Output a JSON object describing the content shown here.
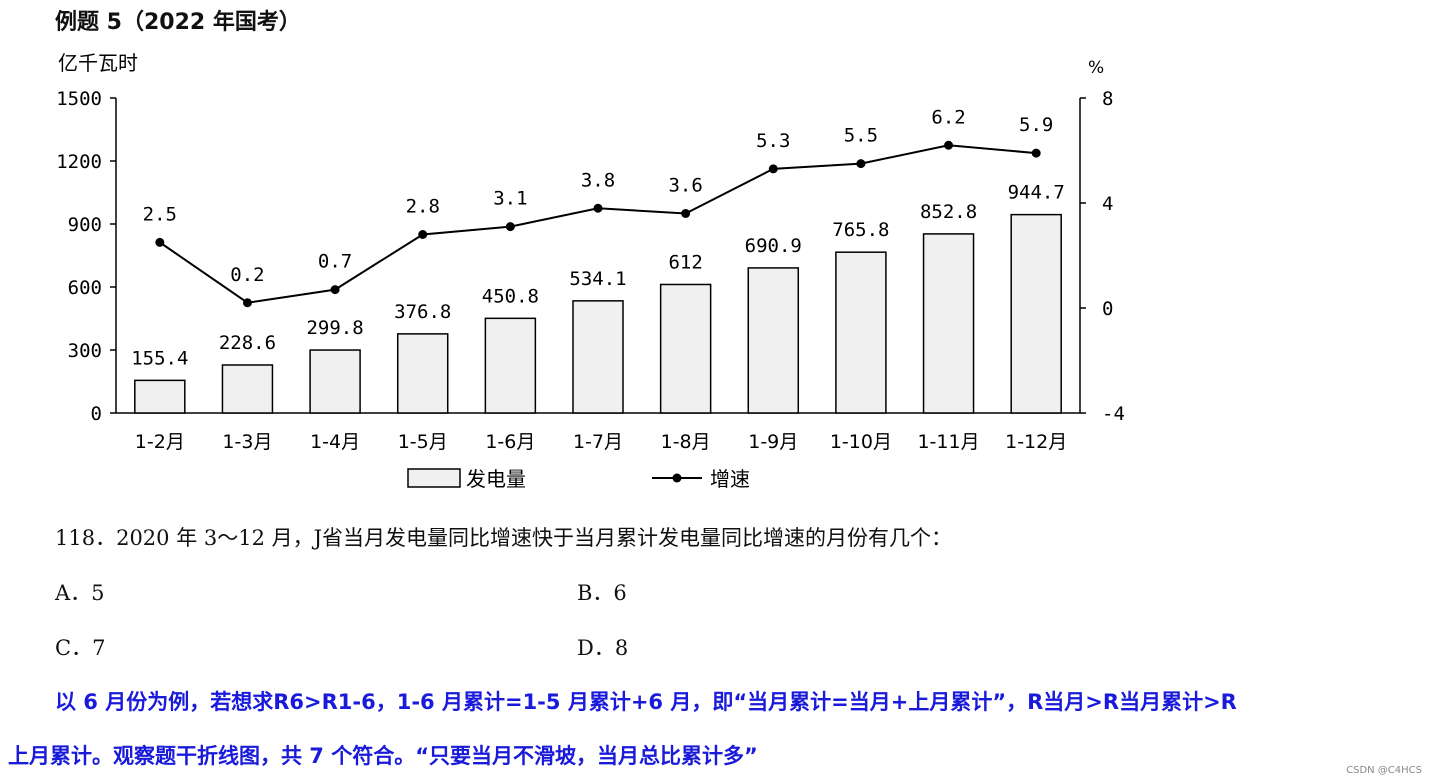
{
  "header": {
    "title": "例题 5（2022 年国考）"
  },
  "chart_data": {
    "type": "bar+line",
    "categories": [
      "1-2月",
      "1-3月",
      "1-4月",
      "1-5月",
      "1-6月",
      "1-7月",
      "1-8月",
      "1-9月",
      "1-10月",
      "1-11月",
      "1-12月"
    ],
    "series": [
      {
        "name": "发电量",
        "type": "bar",
        "axis": "left",
        "values": [
          155.4,
          228.6,
          299.8,
          376.8,
          450.8,
          534.1,
          612,
          690.9,
          765.8,
          852.8,
          944.7
        ],
        "labels": [
          "155.4",
          "228.6",
          "299.8",
          "376.8",
          "450.8",
          "534.1",
          "612",
          "690.9",
          "765.8",
          "852.8",
          "944.7"
        ]
      },
      {
        "name": "增速",
        "type": "line",
        "axis": "right",
        "values": [
          2.5,
          0.2,
          0.7,
          2.8,
          3.1,
          3.8,
          3.6,
          5.3,
          5.5,
          6.2,
          5.9
        ],
        "labels": [
          "2.5",
          "0.2",
          "0.7",
          "2.8",
          "3.1",
          "3.8",
          "3.6",
          "5.3",
          "5.5",
          "6.2",
          "5.9"
        ]
      }
    ],
    "y_left": {
      "label": "亿千瓦时",
      "min": 0,
      "max": 1500,
      "ticks": [
        0,
        300,
        600,
        900,
        1200,
        1500
      ]
    },
    "y_right": {
      "label": "%",
      "min": -4,
      "max": 8,
      "ticks": [
        -4,
        0,
        4,
        8
      ]
    },
    "legend": {
      "position": "bottom-center",
      "items": [
        "发电量",
        "增速"
      ]
    },
    "grid": false,
    "colors": {
      "bar_fill": "#f0f0f0",
      "stroke": "#000000"
    }
  },
  "question": {
    "text": "118．2020 年 3～12 月，J省当月发电量同比增速快于当月累计发电量同比增速的月份有几个：",
    "options": {
      "a": "A．5",
      "b": "B．6",
      "c": "C．7",
      "d": "D．8"
    }
  },
  "note": {
    "line1": "以 6 月份为例，若想求R6>R1-6，1-6 月累计=1-5 月累计+6 月，即“当月累计=当月+上月累计”，R当月>R当月累计>R",
    "line2": "上月累计。观察题干折线图，共 7 个符合。“只要当月不滑坡，当月总比累计多”",
    "color": "#1a1adb"
  },
  "watermark": "CSDN @C4HCS"
}
